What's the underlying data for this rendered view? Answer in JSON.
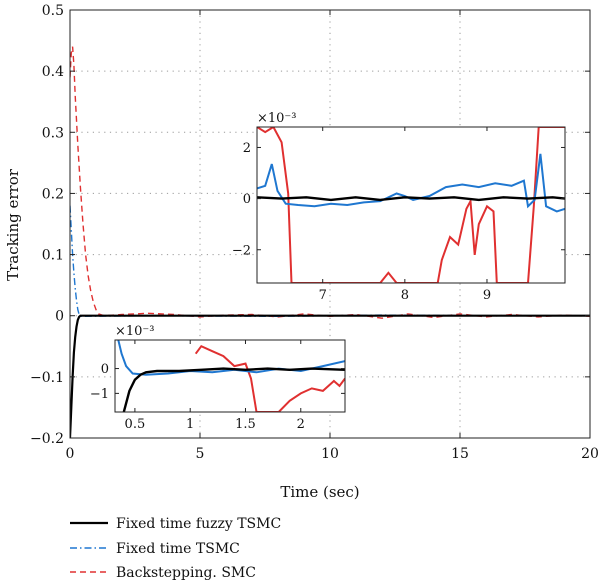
{
  "chart_data": {
    "type": "line",
    "main": {
      "xlabel": "Time (sec)",
      "ylabel": "Tracking error",
      "xlim": [
        0,
        20
      ],
      "ylim": [
        -0.2,
        0.5
      ],
      "xticks": [
        "0",
        "5",
        "10",
        "15",
        "20"
      ],
      "yticks": [
        "0.5",
        "0.4",
        "0.3",
        "0.2",
        "0.1",
        "0",
        "−0.1",
        "−0.2"
      ],
      "grid": true,
      "series": [
        {
          "name": "Fixed time fuzzy TSMC",
          "color": "#000000",
          "style": "solid",
          "points": [
            [
              0,
              -0.2
            ],
            [
              0.05,
              -0.15
            ],
            [
              0.1,
              -0.1
            ],
            [
              0.15,
              -0.06
            ],
            [
              0.2,
              -0.035
            ],
            [
              0.25,
              -0.018
            ],
            [
              0.3,
              -0.007
            ],
            [
              0.35,
              -0.002
            ],
            [
              0.4,
              0
            ],
            [
              20,
              0
            ]
          ]
        },
        {
          "name": "Fixed time TSMC",
          "color": "#1f77d0",
          "style": "dashdot",
          "points": [
            [
              0,
              0.18
            ],
            [
              0.05,
              0.14
            ],
            [
              0.1,
              0.1
            ],
            [
              0.15,
              0.07
            ],
            [
              0.2,
              0.045
            ],
            [
              0.25,
              0.025
            ],
            [
              0.3,
              0.01
            ],
            [
              0.35,
              0.002
            ],
            [
              0.4,
              -0.001
            ],
            [
              3,
              0
            ],
            [
              8,
              -0.001
            ],
            [
              12,
              0.001
            ],
            [
              16,
              0
            ],
            [
              20,
              0
            ]
          ]
        },
        {
          "name": "Backstepping. SMC",
          "color": "#e03030",
          "style": "dashed",
          "points": [
            [
              0,
              0.39
            ],
            [
              0.05,
              0.43
            ],
            [
              0.1,
              0.44
            ],
            [
              0.15,
              0.41
            ],
            [
              0.2,
              0.36
            ],
            [
              0.3,
              0.28
            ],
            [
              0.4,
              0.21
            ],
            [
              0.5,
              0.15
            ],
            [
              0.6,
              0.1
            ],
            [
              0.7,
              0.065
            ],
            [
              0.8,
              0.04
            ],
            [
              0.9,
              0.022
            ],
            [
              1.0,
              0.01
            ],
            [
              1.1,
              0.003
            ],
            [
              1.3,
              0
            ],
            [
              2,
              0.002
            ],
            [
              3,
              0.004
            ],
            [
              4,
              0.002
            ],
            [
              5,
              -0.002
            ],
            [
              6,
              0.001
            ],
            [
              7,
              0.002
            ],
            [
              8,
              -0.002
            ],
            [
              9,
              0.003
            ],
            [
              10,
              -0.001
            ],
            [
              11,
              0.002
            ],
            [
              12,
              -0.004
            ],
            [
              13,
              0.003
            ],
            [
              14,
              -0.003
            ],
            [
              15,
              0.003
            ],
            [
              16,
              -0.002
            ],
            [
              17,
              0.002
            ],
            [
              18,
              -0.002
            ],
            [
              19,
              0.001
            ],
            [
              20,
              -0.001
            ]
          ]
        }
      ]
    },
    "inset_right": {
      "exponent": "×10⁻³",
      "xlim": [
        6.2,
        9.95
      ],
      "ylim": [
        -3.3,
        2.8
      ],
      "xticks": [
        "7",
        "8",
        "9"
      ],
      "yticks": [
        "2",
        "0",
        "−2"
      ],
      "series": [
        {
          "name": "Fixed time fuzzy TSMC",
          "color": "#000000",
          "points": [
            [
              6.2,
              0.05
            ],
            [
              6.5,
              0.0
            ],
            [
              6.8,
              0.05
            ],
            [
              7.1,
              -0.05
            ],
            [
              7.4,
              0.05
            ],
            [
              7.7,
              -0.05
            ],
            [
              8.0,
              0.05
            ],
            [
              8.3,
              0.0
            ],
            [
              8.6,
              0.05
            ],
            [
              8.9,
              -0.05
            ],
            [
              9.2,
              0.05
            ],
            [
              9.5,
              0.0
            ],
            [
              9.8,
              0.05
            ],
            [
              9.95,
              0.0
            ]
          ]
        },
        {
          "name": "Fixed time TSMC",
          "color": "#1f77d0",
          "points": [
            [
              6.2,
              0.4
            ],
            [
              6.3,
              0.5
            ],
            [
              6.38,
              1.35
            ],
            [
              6.45,
              0.3
            ],
            [
              6.55,
              -0.2
            ],
            [
              6.7,
              -0.25
            ],
            [
              6.9,
              -0.3
            ],
            [
              7.1,
              -0.2
            ],
            [
              7.3,
              -0.25
            ],
            [
              7.5,
              -0.15
            ],
            [
              7.7,
              -0.1
            ],
            [
              7.9,
              0.2
            ],
            [
              8.0,
              0.1
            ],
            [
              8.1,
              -0.05
            ],
            [
              8.3,
              0.1
            ],
            [
              8.5,
              0.45
            ],
            [
              8.7,
              0.55
            ],
            [
              8.9,
              0.45
            ],
            [
              9.1,
              0.6
            ],
            [
              9.3,
              0.5
            ],
            [
              9.45,
              0.7
            ],
            [
              9.5,
              -0.3
            ],
            [
              9.58,
              -0.05
            ],
            [
              9.65,
              1.75
            ],
            [
              9.72,
              -0.3
            ],
            [
              9.85,
              -0.5
            ],
            [
              9.95,
              -0.4
            ]
          ]
        },
        {
          "name": "Backstepping. SMC",
          "color": "#e03030",
          "points": [
            [
              6.2,
              2.8
            ],
            [
              6.3,
              2.6
            ],
            [
              6.4,
              2.8
            ],
            [
              6.5,
              2.2
            ],
            [
              6.58,
              0.2
            ],
            [
              6.62,
              -3.3
            ],
            [
              7.7,
              -3.3
            ],
            [
              7.8,
              -2.9
            ],
            [
              7.9,
              -3.3
            ],
            [
              8.4,
              -3.3
            ],
            [
              8.45,
              -2.4
            ],
            [
              8.55,
              -1.5
            ],
            [
              8.65,
              -1.8
            ],
            [
              8.75,
              -0.4
            ],
            [
              8.8,
              -0.1
            ],
            [
              8.85,
              -2.2
            ],
            [
              8.9,
              -1.0
            ],
            [
              9.0,
              -0.3
            ],
            [
              9.08,
              -0.5
            ],
            [
              9.12,
              -3.3
            ],
            [
              9.5,
              -3.3
            ],
            [
              9.57,
              -0.3
            ],
            [
              9.63,
              2.8
            ],
            [
              9.95,
              2.8
            ]
          ]
        }
      ]
    },
    "inset_bottom": {
      "exponent": "×10⁻³",
      "xlim": [
        0.32,
        2.4
      ],
      "ylim": [
        -1.75,
        1.15
      ],
      "xticks": [
        "0.5",
        "1",
        "1.5",
        "2"
      ],
      "yticks": [
        "0",
        "−1"
      ],
      "series": [
        {
          "name": "Fixed time fuzzy TSMC",
          "color": "#000000",
          "points": [
            [
              0.4,
              -1.75
            ],
            [
              0.45,
              -0.9
            ],
            [
              0.5,
              -0.45
            ],
            [
              0.55,
              -0.25
            ],
            [
              0.6,
              -0.15
            ],
            [
              0.7,
              -0.1
            ],
            [
              0.9,
              -0.1
            ],
            [
              1.1,
              -0.05
            ],
            [
              1.3,
              0.0
            ],
            [
              1.5,
              -0.05
            ],
            [
              1.7,
              0.0
            ],
            [
              1.9,
              -0.05
            ],
            [
              2.1,
              0.0
            ],
            [
              2.4,
              -0.05
            ]
          ]
        },
        {
          "name": "Fixed time TSMC",
          "color": "#1f77d0",
          "points": [
            [
              0.35,
              1.15
            ],
            [
              0.38,
              0.6
            ],
            [
              0.42,
              0.1
            ],
            [
              0.48,
              -0.2
            ],
            [
              0.6,
              -0.25
            ],
            [
              0.8,
              -0.2
            ],
            [
              1.0,
              -0.1
            ],
            [
              1.2,
              -0.15
            ],
            [
              1.4,
              -0.05
            ],
            [
              1.6,
              -0.15
            ],
            [
              1.8,
              0.0
            ],
            [
              2.0,
              -0.1
            ],
            [
              2.2,
              0.1
            ],
            [
              2.4,
              0.3
            ]
          ]
        },
        {
          "name": "Backstepping. SMC",
          "color": "#e03030",
          "points": [
            [
              1.05,
              0.6
            ],
            [
              1.1,
              0.9
            ],
            [
              1.2,
              0.7
            ],
            [
              1.3,
              0.5
            ],
            [
              1.4,
              0.1
            ],
            [
              1.5,
              0.2
            ],
            [
              1.55,
              -0.4
            ],
            [
              1.6,
              -1.75
            ],
            [
              1.8,
              -1.75
            ],
            [
              1.9,
              -1.3
            ],
            [
              2.0,
              -1.0
            ],
            [
              2.1,
              -0.8
            ],
            [
              2.2,
              -0.9
            ],
            [
              2.3,
              -0.5
            ],
            [
              2.35,
              -0.7
            ],
            [
              2.4,
              -0.4
            ]
          ]
        }
      ]
    }
  }
}
